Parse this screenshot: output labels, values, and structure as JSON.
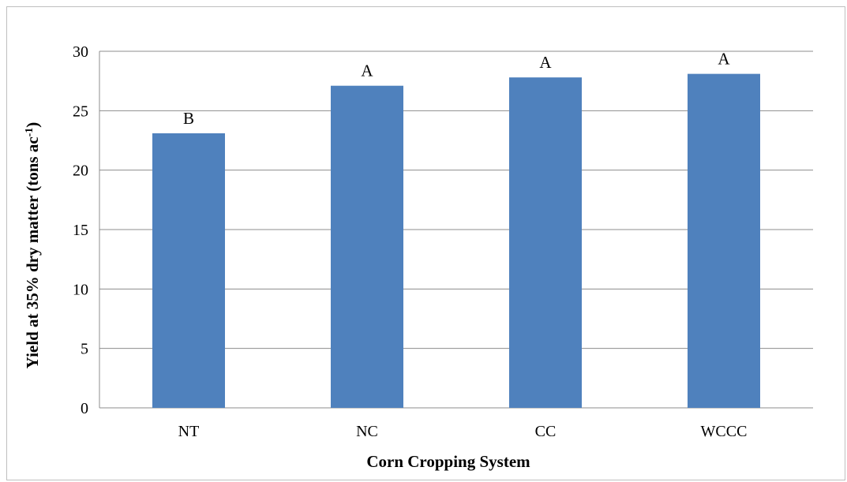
{
  "chart_data": {
    "type": "bar",
    "categories": [
      "NT",
      "NC",
      "CC",
      "WCCC"
    ],
    "values": [
      23.1,
      27.1,
      27.8,
      28.1
    ],
    "data_labels": [
      "B",
      "A",
      "A",
      "A"
    ],
    "xlabel": "Corn Cropping System",
    "ylabel": {
      "main": "Yield at 35% dry matter (tons ac",
      "superscript": "-1",
      "suffix": ")"
    },
    "ylim": [
      0,
      30
    ],
    "yticks": [
      "0",
      "5",
      "10",
      "15",
      "20",
      "25",
      "30"
    ],
    "grid": true,
    "legend": "none",
    "bar_color": "#4f81bd",
    "grid_color": "#8c8c8c"
  }
}
